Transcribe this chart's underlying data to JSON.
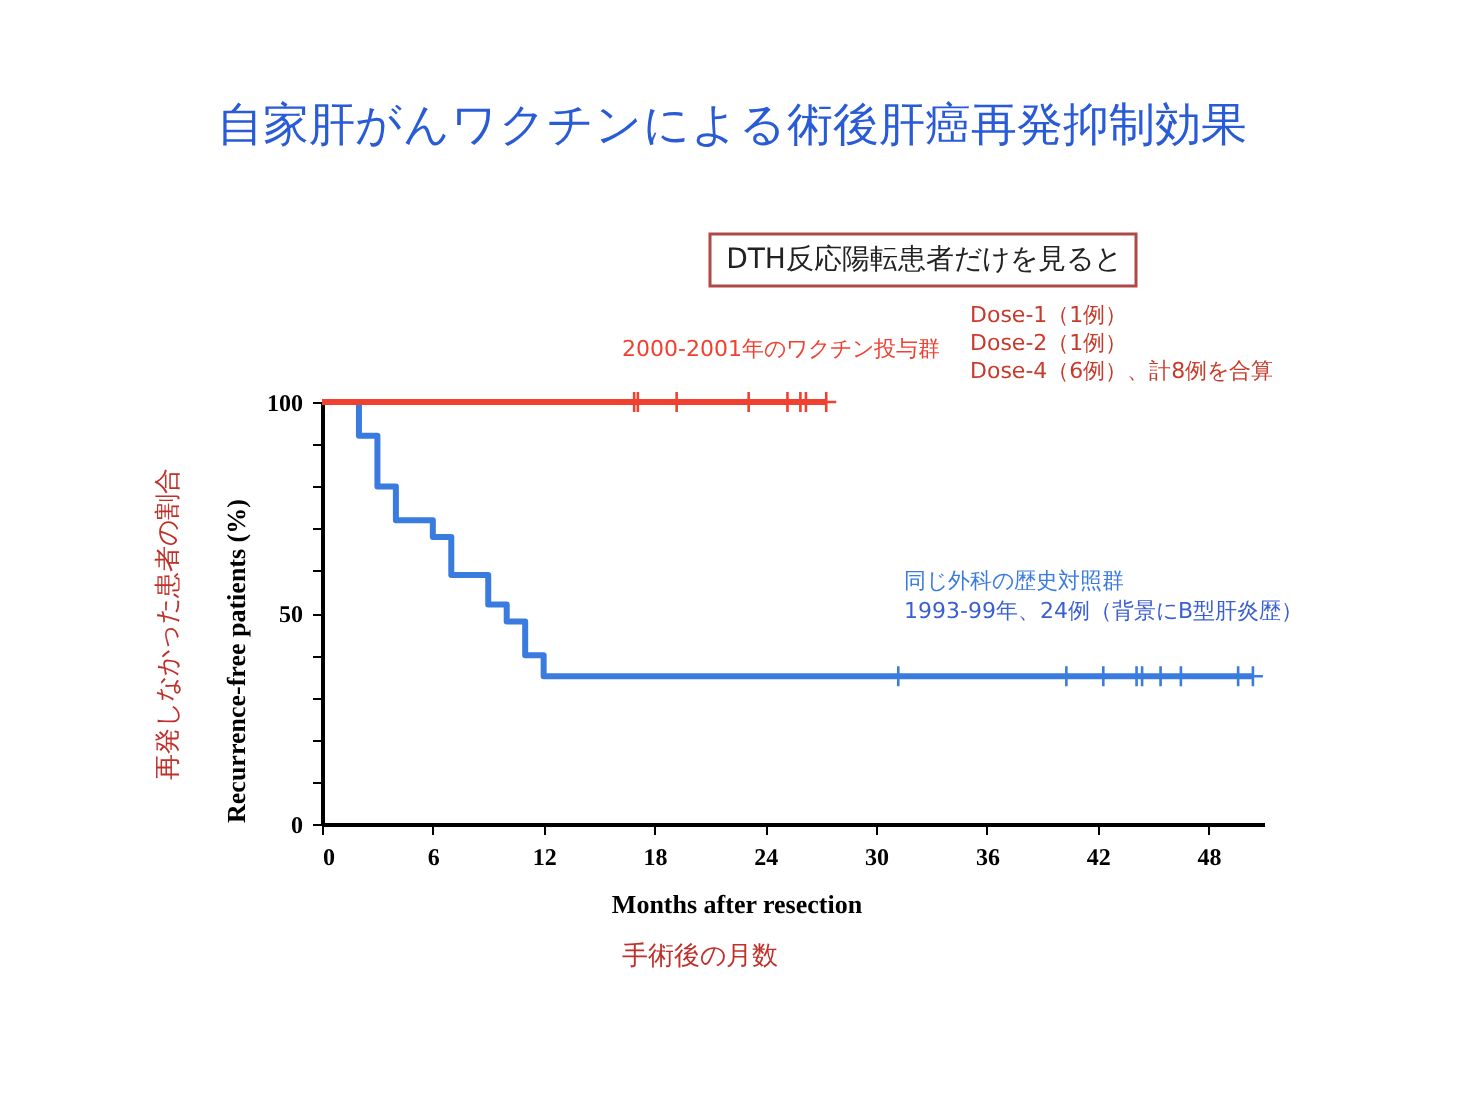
{
  "chart_data": {
    "type": "step",
    "title": "自家肝がんワクチンによる術後肝癌再発抑制効果",
    "xlabel": "Months after resection",
    "ylabel": "Recurrence-free patients (%)",
    "annotations": [
      "DTH反応陽転患者だけを見ると",
      "Dose-1（1例）",
      "Dose-2（1例）",
      "Dose-4（6例）、計8例を合算",
      "1993-99年、24例（背景にB型肝炎歴）",
      "再発しなかった患者の割合",
      "手術後の月数"
    ],
    "series": [
      {
        "name": "同じ外科の歴史対照群",
        "color": "#3a7be0",
        "x": [
          2,
          2,
          3,
          4,
          6,
          7,
          9,
          10,
          11,
          12,
          50.4
        ],
        "values": [
          100,
          92,
          80,
          72,
          68,
          59,
          52,
          48,
          40,
          35,
          35
        ]
      },
      {
        "name": "2000-2001年のワクチン投与群",
        "color": "#f04030",
        "x": [
          0,
          27.3
        ],
        "values": [
          100,
          100
        ]
      },
      {
        "type": "scatter",
        "marker": "cross",
        "color": "#3a7be0",
        "x": [
          31.2,
          40.3,
          42.3,
          44.1,
          44.4,
          45.4,
          46.5,
          49.6,
          50.4
        ],
        "values": [
          35,
          35,
          35,
          35,
          35,
          35,
          35,
          35,
          35
        ]
      },
      {
        "type": "scatter",
        "marker": "cross",
        "color": "#f04030",
        "x": [
          16.9,
          17.1,
          19.2,
          23.1,
          25.2,
          25.9,
          26.2,
          27.3
        ],
        "values": [
          100,
          100,
          100,
          100,
          100,
          100,
          100,
          100
        ]
      }
    ],
    "xlim": [
      0,
      51
    ],
    "ylim": [
      0,
      100
    ],
    "xticks": [
      0,
      6,
      12,
      18,
      24,
      30,
      36,
      42,
      48
    ],
    "yticks": [
      0,
      {
        "value": 10,
        "label": null
      },
      {
        "value": 20,
        "label": null
      },
      {
        "value": 30,
        "label": null
      },
      {
        "value": 40,
        "label": null
      },
      50,
      {
        "value": 60,
        "label": null
      },
      {
        "value": 70,
        "label": null
      },
      {
        "value": 80,
        "label": null
      },
      {
        "value": 90,
        "label": null
      },
      100
    ],
    "grid": false
  }
}
